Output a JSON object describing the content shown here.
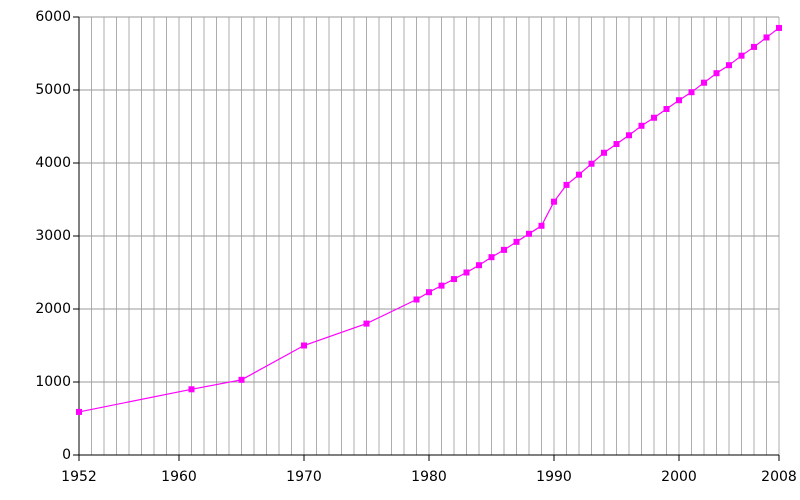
{
  "chart_data": {
    "type": "line",
    "x": [
      1952,
      1961,
      1965,
      1970,
      1975,
      1979,
      1980,
      1981,
      1982,
      1983,
      1984,
      1985,
      1986,
      1987,
      1988,
      1989,
      1990,
      1991,
      1992,
      1993,
      1994,
      1995,
      1996,
      1997,
      1998,
      1999,
      2000,
      2001,
      2002,
      2003,
      2004,
      2005,
      2006,
      2007,
      2008
    ],
    "series": [
      {
        "color": "#ff00ff",
        "values": [
          590,
          900,
          1030,
          1500,
          1800,
          2130,
          2230,
          2320,
          2410,
          2500,
          2600,
          2710,
          2810,
          2920,
          3030,
          3140,
          3470,
          3700,
          3840,
          3990,
          4140,
          4260,
          4380,
          4510,
          4620,
          4740,
          4860,
          4970,
          5100,
          5230,
          5340,
          5470,
          5590,
          5720,
          5850
        ]
      }
    ],
    "xlim": [
      1952,
      2008
    ],
    "xticks": [
      1952,
      1960,
      1970,
      1980,
      1990,
      2000,
      2008
    ],
    "ylim": [
      0,
      6000
    ],
    "yticks": [
      0,
      1000,
      2000,
      3000,
      4000,
      5000,
      6000
    ],
    "grid": true,
    "xgrid_step": 1
  }
}
